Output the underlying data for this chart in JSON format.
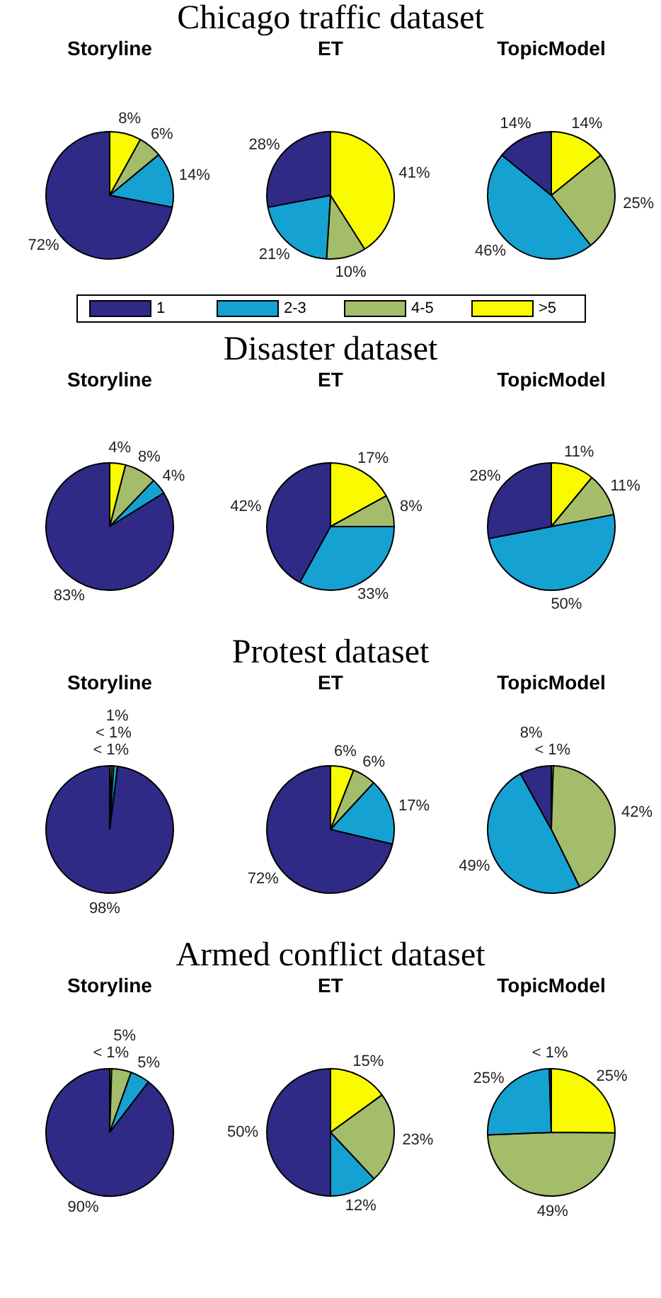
{
  "chart_data": [
    {
      "type": "pie",
      "subtitle": "Storyline",
      "categories": [
        "1",
        "2-3",
        "4-5",
        ">5"
      ],
      "values": [
        72,
        14,
        6,
        8
      ],
      "colors": [
        "#2e2a86",
        "#16a1d3",
        "#a3bd6b",
        "#fafa00"
      ],
      "value_labels": [
        "72%",
        "14%",
        "6%",
        "8%"
      ],
      "legend": "bottom"
    },
    {
      "type": "pie",
      "title": "Chicago traffic dataset",
      "subtitle": "ET",
      "values": [
        28,
        21,
        10,
        41
      ],
      "colors": [
        "#2e2a86",
        "#16a1d3",
        "#a3bd6b",
        "#fafa00"
      ],
      "value_labels": [
        "28%",
        "21%",
        "10%",
        "41%"
      ]
    },
    {
      "type": "pie",
      "subtitle": "TopicModel",
      "values": [
        14,
        46,
        25,
        14
      ],
      "colors": [
        "#2e2a86",
        "#16a1d3",
        "#a3bd6b",
        "#fafa00"
      ],
      "value_labels": [
        "14%",
        "46%",
        "25%",
        "14%"
      ]
    },
    {
      "type": "pie",
      "subtitle": "Storyline",
      "values": [
        83,
        4,
        8,
        4
      ],
      "colors": [
        "#2e2a86",
        "#16a1d3",
        "#a3bd6b",
        "#fafa00"
      ],
      "value_labels": [
        "83%",
        "4%",
        "8%",
        "4%"
      ]
    },
    {
      "type": "pie",
      "title": "Disaster dataset",
      "subtitle": "ET",
      "values": [
        42,
        33,
        8,
        17
      ],
      "colors": [
        "#2e2a86",
        "#16a1d3",
        "#a3bd6b",
        "#fafa00"
      ],
      "value_labels": [
        "42%",
        "33%",
        "8%",
        "17%"
      ]
    },
    {
      "type": "pie",
      "subtitle": "TopicModel",
      "values": [
        28,
        50,
        11,
        11
      ],
      "colors": [
        "#2e2a86",
        "#16a1d3",
        "#a3bd6b",
        "#fafa00"
      ],
      "value_labels": [
        "28%",
        "50%",
        "11%",
        "11%"
      ]
    },
    {
      "type": "pie",
      "subtitle": "Storyline",
      "values": [
        98,
        1,
        0.5,
        0.5
      ],
      "colors": [
        "#2e2a86",
        "#16a1d3",
        "#a3bd6b",
        "#fafa00"
      ],
      "value_labels": [
        "98%",
        "1%",
        "< 1%",
        "< 1%"
      ]
    },
    {
      "type": "pie",
      "title": "Protest dataset",
      "subtitle": "ET",
      "values": [
        72,
        17,
        6,
        6
      ],
      "colors": [
        "#2e2a86",
        "#16a1d3",
        "#a3bd6b",
        "#fafa00"
      ],
      "value_labels": [
        "72%",
        "17%",
        "6%",
        "6%"
      ]
    },
    {
      "type": "pie",
      "subtitle": "TopicModel",
      "values": [
        8,
        49,
        42,
        0.5
      ],
      "colors": [
        "#2e2a86",
        "#16a1d3",
        "#a3bd6b",
        "#fafa00"
      ],
      "value_labels": [
        "8%",
        "49%",
        "42%",
        "< 1%"
      ]
    },
    {
      "type": "pie",
      "subtitle": "Storyline",
      "values": [
        90,
        5,
        5,
        0.5
      ],
      "colors": [
        "#2e2a86",
        "#16a1d3",
        "#a3bd6b",
        "#fafa00"
      ],
      "value_labels": [
        "90%",
        "5%",
        "5%",
        "< 1%"
      ]
    },
    {
      "type": "pie",
      "title": "Armed conflict dataset",
      "subtitle": "ET",
      "values": [
        50,
        12,
        23,
        15
      ],
      "colors": [
        "#2e2a86",
        "#16a1d3",
        "#a3bd6b",
        "#fafa00"
      ],
      "value_labels": [
        "50%",
        "12%",
        "23%",
        "15%"
      ]
    },
    {
      "type": "pie",
      "subtitle": "TopicModel",
      "values": [
        0.5,
        25,
        49,
        25
      ],
      "colors": [
        "#2e2a86",
        "#16a1d3",
        "#a3bd6b",
        "#fafa00"
      ],
      "value_labels": [
        "< 1%",
        "25%",
        "49%",
        "25%"
      ]
    }
  ]
}
